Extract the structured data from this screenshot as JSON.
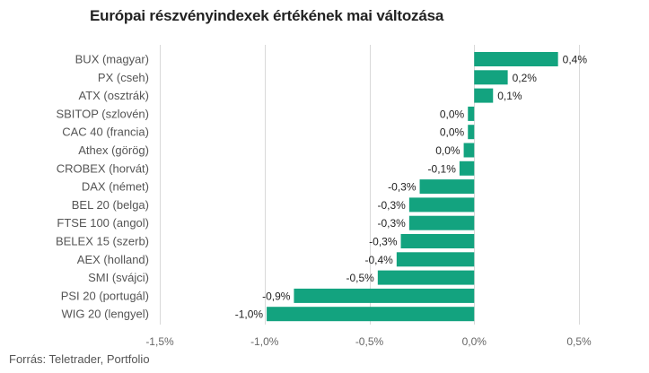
{
  "title": "Európai részvényindexek értékének mai változása",
  "source": "Forrás: Teletrader, Portfolio",
  "colors": {
    "bar": "#13a37f",
    "grid": "#d9d9d9"
  },
  "chart_data": {
    "type": "bar",
    "orientation": "horizontal",
    "title": "Európai részvényindexek értékének mai változása",
    "categories": [
      "BUX (magyar)",
      "PX (cseh)",
      "ATX (osztrák)",
      "SBITOP (szlovén)",
      "CAC 40 (francia)",
      "Athex (görög)",
      "CROBEX (horvát)",
      "DAX (német)",
      "BEL 20 (belga)",
      "FTSE 100 (angol)",
      "BELEX 15 (szerb)",
      "AEX (holland)",
      "SMI (svájci)",
      "PSI 20 (portugál)",
      "WIG 20 (lengyel)"
    ],
    "values": [
      0.4,
      0.16,
      0.09,
      -0.03,
      -0.03,
      -0.05,
      -0.07,
      -0.26,
      -0.31,
      -0.31,
      -0.35,
      -0.37,
      -0.46,
      -0.86,
      -0.99
    ],
    "data_labels": [
      "0,4%",
      "0,2%",
      "0,1%",
      "0,0%",
      "0,0%",
      "0,0%",
      "-0,1%",
      "-0,3%",
      "-0,3%",
      "-0,3%",
      "-0,3%",
      "-0,4%",
      "-0,5%",
      "-0,9%",
      "-1,0%"
    ],
    "xlim": [
      -1.5,
      0.5
    ],
    "xticks": [
      -1.5,
      -1.0,
      -0.5,
      0.0,
      0.5
    ],
    "xtick_labels": [
      "-1,5%",
      "-1,0%",
      "-0,5%",
      "0,0%",
      "0,5%"
    ],
    "grid": true,
    "xlabel": "",
    "ylabel": ""
  }
}
